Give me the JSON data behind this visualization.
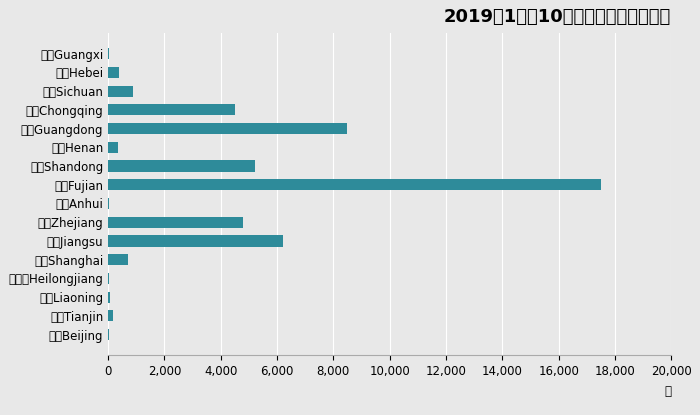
{
  "title": "2019年1月至10月各省累计鱼油进口量",
  "xlabel_unit": "吨",
  "bar_color": "#2e8b9a",
  "background_color": "#e8e8e8",
  "categories": [
    "广西Guangxi",
    "河北Hebei",
    "四川Sichuan",
    "重庆Chongqing",
    "广东Guangdong",
    "河南Henan",
    "山东Shandong",
    "福建Fujian",
    "安徽Anhui",
    "浙江Zhejiang",
    "江苏Jiangsu",
    "上海Shanghai",
    "黑龙江Heilongjiang",
    "辽宁Liaoning",
    "天津Tianjin",
    "北京Beijing"
  ],
  "values": [
    30,
    400,
    900,
    4500,
    8500,
    350,
    5200,
    17500,
    50,
    4800,
    6200,
    700,
    40,
    60,
    180,
    20
  ],
  "xlim": [
    0,
    20000
  ],
  "xticks": [
    0,
    2000,
    4000,
    6000,
    8000,
    10000,
    12000,
    14000,
    16000,
    18000,
    20000
  ],
  "title_fontsize": 13,
  "tick_fontsize": 8.5,
  "label_fontsize": 8.5
}
